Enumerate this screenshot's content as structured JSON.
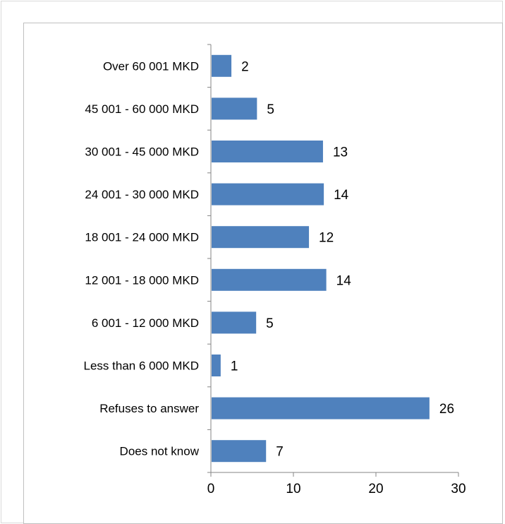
{
  "chart_data": {
    "type": "bar",
    "orientation": "horizontal",
    "categories": [
      "Over 60 001 MKD",
      "45 001 - 60 000 MKD",
      "30 001 - 45 000 MKD",
      "24 001 - 30 000 MKD",
      "18 001 - 24 000 MKD",
      "12 001 - 18 000 MKD",
      "6 001 - 12 000 MKD",
      "Less than 6 000 MKD",
      "Refuses to answer",
      "Does not know"
    ],
    "values": [
      2.4,
      5.5,
      13.5,
      13.6,
      11.8,
      13.9,
      5.4,
      1.1,
      26.4,
      6.6
    ],
    "value_labels": [
      "2",
      "5",
      "13",
      "14",
      "12",
      "14",
      "5",
      "1",
      "26",
      "7"
    ],
    "title": "",
    "xlabel": "",
    "ylabel": "",
    "xlim": [
      0,
      30
    ],
    "xticks": [
      0,
      10,
      20,
      30
    ],
    "xtick_labels": [
      "0",
      "10",
      "20",
      "30"
    ],
    "grid": false,
    "bar_color": "#4f81bd"
  }
}
